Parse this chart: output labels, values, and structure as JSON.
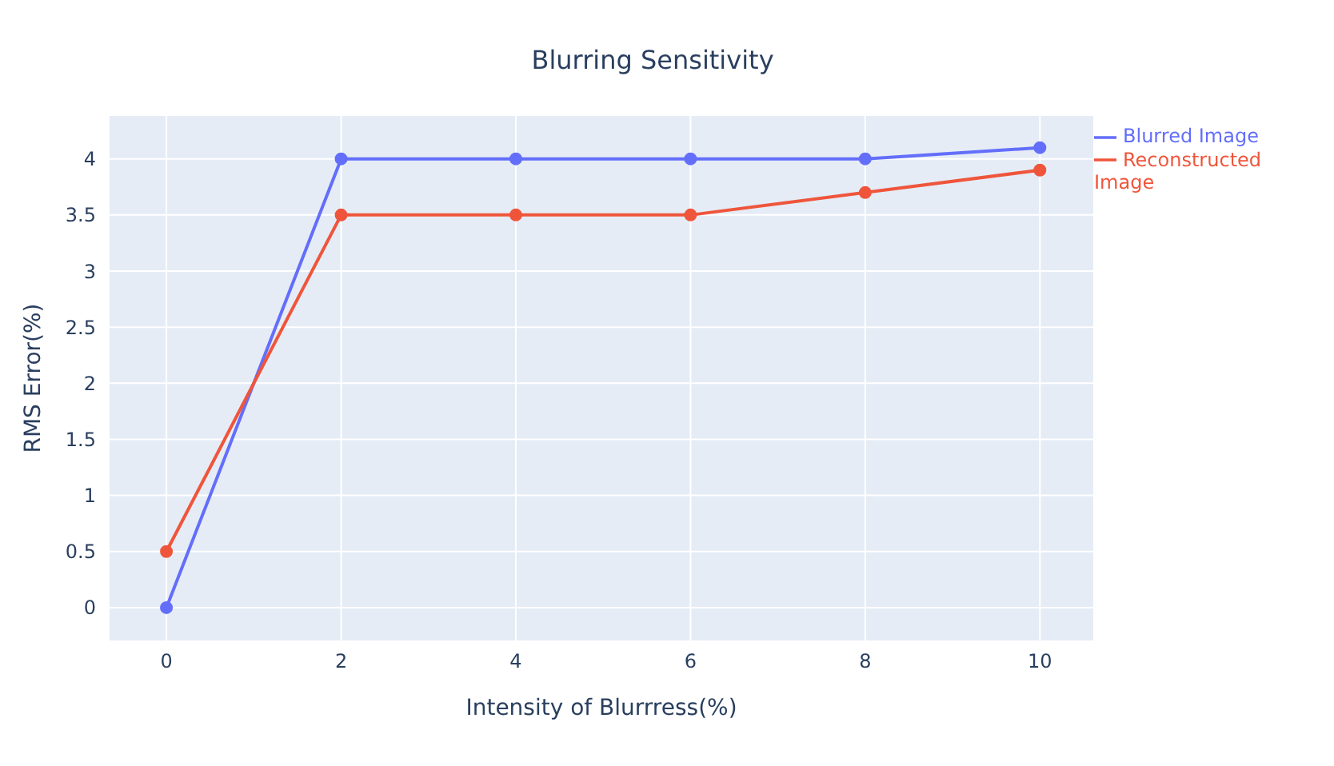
{
  "chart_data": {
    "type": "line",
    "title": "Blurring Sensitivity",
    "xlabel": "Intensity of Blurrress(%)",
    "ylabel": "RMS Error(%)",
    "x": [
      0,
      2,
      4,
      6,
      8,
      10
    ],
    "series": [
      {
        "name": "Blurred Image",
        "color": "#636efa",
        "values": [
          0,
          4,
          4,
          4,
          4,
          4.1
        ]
      },
      {
        "name": "Reconstructed Image",
        "color": "#ef553b",
        "values": [
          0.5,
          3.5,
          3.5,
          3.5,
          3.7,
          3.9
        ]
      }
    ],
    "xlim": [
      -0.66,
      10.62
    ],
    "xticks": [
      0,
      2,
      4,
      6,
      8,
      10
    ],
    "ylim": [
      -0.3,
      4.39
    ],
    "yticks": [
      0,
      0.5,
      1,
      1.5,
      2,
      2.5,
      3,
      3.5,
      4
    ],
    "grid": true,
    "legend": "top right",
    "marker": "circle",
    "line_style": "solid"
  }
}
